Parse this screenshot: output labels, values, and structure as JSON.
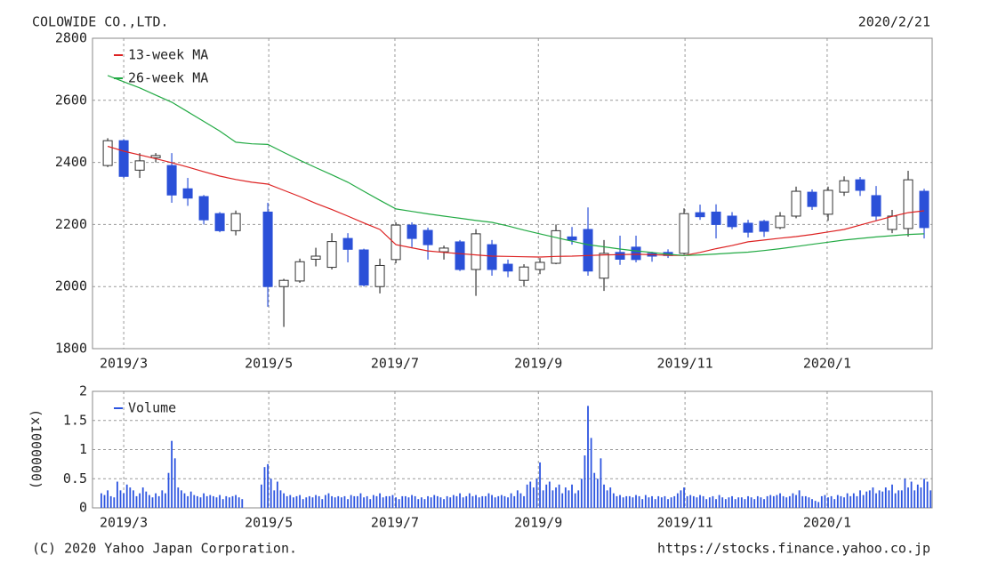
{
  "header": {
    "title": "COLOWIDE CO.,LTD.",
    "date": "2020/2/21"
  },
  "footer": {
    "copyright": "(C) 2020 Yahoo Japan Corporation.",
    "url": "https://stocks.finance.yahoo.co.jp"
  },
  "chart_data": [
    {
      "type": "candlestick",
      "categories": [
        null,
        null,
        null,
        null,
        null,
        null,
        null,
        null,
        null,
        null,
        null,
        null,
        null,
        null,
        null,
        null,
        null,
        null,
        null,
        null,
        null,
        null,
        null,
        null,
        null,
        null,
        null,
        null,
        null,
        null,
        null,
        null,
        null,
        null,
        null,
        null,
        null,
        null,
        null,
        null,
        null,
        null,
        null,
        null,
        null,
        null,
        null,
        null,
        null,
        null,
        null,
        null
      ],
      "open": [
        2390,
        2470,
        2375,
        2415,
        2390,
        2315,
        2290,
        2235,
        2180,
        null,
        2240,
        2000,
        2018,
        2088,
        2062,
        2155,
        2118,
        2000,
        2087,
        2198,
        2181,
        2112,
        2144,
        2055,
        2135,
        2072,
        2020,
        2055,
        2075,
        2160,
        2184,
        2027,
        2110,
        2127,
        2107,
        2110,
        2107,
        2238,
        2240,
        2227,
        2204,
        2210,
        2190,
        2227,
        2304,
        2233,
        2304,
        2344,
        2293,
        2184,
        2187,
        2307
      ],
      "high": [
        2478,
        2475,
        2430,
        2430,
        2430,
        2350,
        2295,
        2240,
        2245,
        null,
        2270,
        2025,
        2090,
        2125,
        2172,
        2172,
        2122,
        2090,
        2207,
        2207,
        2190,
        2132,
        2150,
        2185,
        2150,
        2087,
        2072,
        2092,
        2200,
        2192,
        2255,
        2150,
        2164,
        2164,
        2112,
        2120,
        2252,
        2264,
        2265,
        2240,
        2215,
        2215,
        2240,
        2322,
        2313,
        2322,
        2355,
        2353,
        2324,
        2247,
        2373,
        2315
      ],
      "low": [
        2385,
        2350,
        2350,
        2400,
        2270,
        2260,
        2200,
        2175,
        2165,
        null,
        1935,
        1870,
        2012,
        2065,
        2055,
        2078,
        2000,
        1978,
        2075,
        2127,
        2087,
        2087,
        2050,
        1970,
        2035,
        2030,
        2000,
        2040,
        2072,
        2135,
        2035,
        1986,
        2070,
        2078,
        2080,
        2092,
        2103,
        2215,
        2155,
        2185,
        2158,
        2160,
        2185,
        2220,
        2247,
        2212,
        2292,
        2292,
        2212,
        2172,
        2161,
        2155
      ],
      "close": [
        2470,
        2355,
        2405,
        2422,
        2295,
        2285,
        2215,
        2180,
        2235,
        null,
        2000,
        2020,
        2080,
        2098,
        2145,
        2120,
        2005,
        2068,
        2198,
        2155,
        2135,
        2124,
        2055,
        2170,
        2055,
        2050,
        2063,
        2078,
        2180,
        2150,
        2050,
        2107,
        2088,
        2087,
        2098,
        2100,
        2235,
        2225,
        2200,
        2193,
        2175,
        2178,
        2227,
        2307,
        2258,
        2310,
        2341,
        2310,
        2227,
        2227,
        2344,
        2190
      ],
      "up_color": "#ffffff",
      "down_color": "#2b50d8",
      "series": [
        {
          "name": "13-week MA",
          "color": "#dd2222",
          "values": [
            2452,
            2436,
            2424,
            2412,
            2399,
            2385,
            2370,
            2356,
            2345,
            2336,
            2330,
            2310,
            2290,
            2268,
            2248,
            2227,
            2205,
            2184,
            2135,
            2125,
            2115,
            2110,
            2106,
            2102,
            2098,
            2097,
            2096,
            2095,
            2097,
            2098,
            2100,
            2102,
            2103,
            2104,
            2103,
            2101,
            2100,
            2110,
            2122,
            2132,
            2144,
            2150,
            2156,
            2161,
            2168,
            2176,
            2184,
            2198,
            2212,
            2226,
            2238,
            2244
          ]
        },
        {
          "name": "26-week MA",
          "color": "#22aa44",
          "values": [
            2680,
            2660,
            2640,
            2617,
            2594,
            2563,
            2532,
            2501,
            2465,
            2460,
            2458,
            2432,
            2407,
            2383,
            2360,
            2336,
            2307,
            2278,
            2250,
            2242,
            2234,
            2227,
            2220,
            2213,
            2207,
            2195,
            2182,
            2170,
            2158,
            2146,
            2135,
            2128,
            2121,
            2115,
            2110,
            2104,
            2100,
            2102,
            2105,
            2108,
            2111,
            2116,
            2122,
            2129,
            2136,
            2143,
            2150,
            2155,
            2160,
            2164,
            2168,
            2170
          ]
        }
      ],
      "xlim": [
        -0.95,
        51.5
      ],
      "xticks": [
        {
          "value": 1,
          "label": "2019/3"
        },
        {
          "value": 10.06,
          "label": "2019/5"
        },
        {
          "value": 17.94,
          "label": "2019/7"
        },
        {
          "value": 26.9,
          "label": "2019/9"
        },
        {
          "value": 36.06,
          "label": "2019/11"
        },
        {
          "value": 44.94,
          "label": "2020/1"
        }
      ],
      "ylim": [
        1800,
        2800
      ],
      "yticks": [
        1800,
        2000,
        2200,
        2400,
        2600,
        2800
      ],
      "grid": true
    },
    {
      "type": "bar",
      "y_label": "(x1000000)",
      "series": [
        {
          "name": "Volume",
          "color": "#2d55e0",
          "values": [
            0.25,
            0.22,
            0.3,
            0.2,
            0.18,
            0.45,
            0.3,
            0.25,
            0.4,
            0.35,
            0.3,
            0.2,
            0.25,
            0.35,
            0.28,
            0.22,
            0.18,
            0.25,
            0.2,
            0.3,
            0.25,
            0.6,
            1.15,
            0.85,
            0.35,
            0.3,
            0.25,
            0.2,
            0.28,
            0.22,
            0.2,
            0.18,
            0.25,
            0.2,
            0.22,
            0.2,
            0.18,
            0.22,
            0.15,
            0.2,
            0.18,
            0.2,
            0.22,
            0.18,
            0.15,
            null,
            null,
            null,
            null,
            null,
            0.4,
            0.7,
            0.75,
            0.5,
            0.3,
            0.45,
            0.3,
            0.25,
            0.2,
            0.22,
            0.18,
            0.2,
            0.22,
            0.15,
            0.18,
            0.2,
            0.18,
            0.22,
            0.2,
            0.15,
            0.22,
            0.25,
            0.2,
            0.18,
            0.2,
            0.18,
            0.2,
            0.15,
            0.22,
            0.2,
            0.2,
            0.25,
            0.18,
            0.2,
            0.15,
            0.22,
            0.2,
            0.25,
            0.18,
            0.2,
            0.2,
            0.22,
            0.18,
            0.15,
            0.2,
            0.2,
            0.18,
            0.22,
            0.2,
            0.15,
            0.18,
            0.15,
            0.2,
            0.18,
            0.22,
            0.2,
            0.18,
            0.15,
            0.2,
            0.18,
            0.22,
            0.2,
            0.25,
            0.18,
            0.2,
            0.25,
            0.2,
            0.22,
            0.18,
            0.2,
            0.2,
            0.25,
            0.22,
            0.18,
            0.2,
            0.22,
            0.2,
            0.18,
            0.25,
            0.2,
            0.3,
            0.25,
            0.2,
            0.4,
            0.45,
            0.35,
            0.5,
            0.78,
            0.3,
            0.4,
            0.45,
            0.3,
            0.35,
            0.4,
            0.25,
            0.35,
            0.3,
            0.4,
            0.25,
            0.3,
            0.5,
            0.9,
            1.75,
            1.2,
            0.6,
            0.5,
            0.85,
            0.4,
            0.3,
            0.35,
            0.25,
            0.2,
            0.22,
            0.18,
            0.2,
            0.2,
            0.18,
            0.22,
            0.2,
            0.15,
            0.22,
            0.18,
            0.2,
            0.15,
            0.2,
            0.18,
            0.2,
            0.15,
            0.18,
            0.2,
            0.25,
            0.3,
            0.35,
            0.2,
            0.22,
            0.2,
            0.18,
            0.22,
            0.2,
            0.15,
            0.18,
            0.2,
            0.15,
            0.22,
            0.18,
            0.15,
            0.18,
            0.2,
            0.15,
            0.18,
            0.18,
            0.15,
            0.2,
            0.18,
            0.15,
            0.2,
            0.18,
            0.15,
            0.2,
            0.22,
            0.2,
            0.22,
            0.25,
            0.2,
            0.18,
            0.2,
            0.25,
            0.22,
            0.3,
            0.2,
            0.2,
            0.18,
            0.15,
            0.12,
            0.1,
            0.2,
            0.22,
            0.18,
            0.2,
            0.15,
            0.22,
            0.2,
            0.18,
            0.25,
            0.2,
            0.25,
            0.2,
            0.3,
            0.22,
            0.28,
            0.3,
            0.35,
            0.25,
            0.3,
            0.28,
            0.35,
            0.3,
            0.4,
            0.25,
            0.3,
            0.3,
            0.5,
            0.35,
            0.45,
            0.3,
            0.4,
            0.35,
            0.5,
            0.45,
            0.3
          ]
        }
      ],
      "xlim": [
        -2.75,
        259.5
      ],
      "xticks": [
        {
          "value": 7,
          "label": "2019/3"
        },
        {
          "value": 52.3,
          "label": "2019/5"
        },
        {
          "value": 91.7,
          "label": "2019/7"
        },
        {
          "value": 136.5,
          "label": "2019/9"
        },
        {
          "value": 182.3,
          "label": "2019/11"
        },
        {
          "value": 226.7,
          "label": "2020/1"
        }
      ],
      "ylim": [
        0,
        2
      ],
      "yticks": [
        0,
        0.5,
        1,
        1.5,
        2
      ],
      "grid": true
    }
  ]
}
